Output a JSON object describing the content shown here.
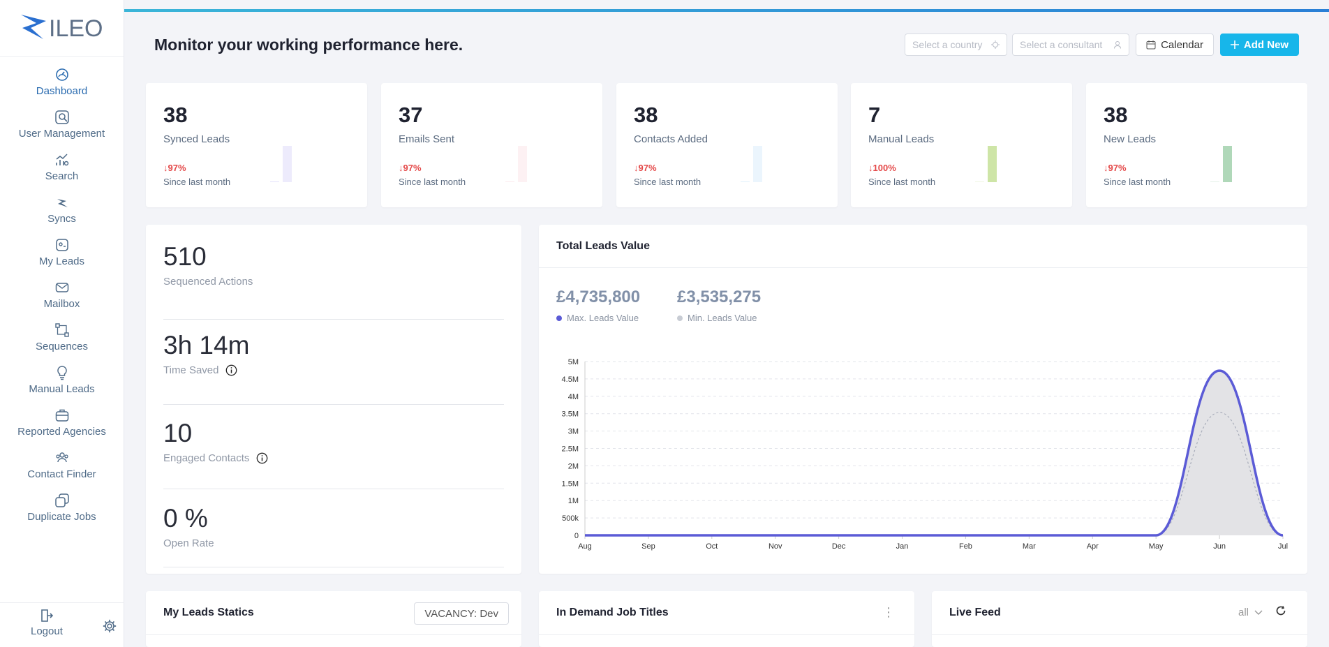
{
  "brand": {
    "logo_text": "ILEO"
  },
  "sidebar": {
    "items": [
      {
        "label": "Dashboard",
        "icon": "dashboard-gauge-icon",
        "active": true
      },
      {
        "label": "User Management",
        "icon": "user-search-icon"
      },
      {
        "label": "Search",
        "icon": "chart-search-icon"
      },
      {
        "label": "Syncs",
        "icon": "sync-bolt-icon"
      },
      {
        "label": "My Leads",
        "icon": "leads-card-icon"
      },
      {
        "label": "Mailbox",
        "icon": "mail-icon"
      },
      {
        "label": "Sequences",
        "icon": "sequence-icon"
      },
      {
        "label": "Manual Leads",
        "icon": "bulb-icon"
      },
      {
        "label": "Reported Agencies",
        "icon": "briefcase-icon"
      },
      {
        "label": "Contact Finder",
        "icon": "contacts-icon"
      },
      {
        "label": "Duplicate Jobs",
        "icon": "duplicate-icon"
      }
    ],
    "logout_label": "Logout"
  },
  "header": {
    "title": "Monitor your working performance here.",
    "country_placeholder": "Select a country",
    "consultant_placeholder": "Select a consultant",
    "calendar_label": "Calendar",
    "add_label": "Add New"
  },
  "stats": [
    {
      "value": "38",
      "label": "Synced Leads",
      "delta": "97%",
      "since": "Since last month",
      "color": "#6c5ce7",
      "bars": [
        0.02,
        1.0
      ]
    },
    {
      "value": "37",
      "label": "Emails Sent",
      "delta": "97%",
      "since": "Since last month",
      "color": "#f08a9a",
      "bars": [
        0.02,
        1.0
      ]
    },
    {
      "value": "38",
      "label": "Contacts Added",
      "delta": "97%",
      "since": "Since last month",
      "color": "#5ab0f0",
      "bars": [
        0.02,
        1.0
      ]
    },
    {
      "value": "7",
      "label": "Manual Leads",
      "delta": "100%",
      "since": "Since last month",
      "color": "#a6cf5e",
      "bars": [
        0,
        1.0
      ]
    },
    {
      "value": "38",
      "label": "New Leads",
      "delta": "97%",
      "since": "Since last month",
      "color": "#6fb880",
      "bars": [
        0.02,
        1.0
      ]
    }
  ],
  "metrics": [
    {
      "value": "510",
      "label": "Sequenced Actions",
      "info": false
    },
    {
      "value": "3h 14m",
      "label": "Time Saved",
      "info": true
    },
    {
      "value": "10",
      "label": "Engaged Contacts",
      "info": true
    },
    {
      "value": "0 %",
      "label": "Open Rate",
      "info": false
    }
  ],
  "total_leads": {
    "title": "Total Leads Value",
    "max_value": "£4,735,800",
    "max_label": "Max. Leads Value",
    "min_value": "£3,535,275",
    "min_label": "Min. Leads Value"
  },
  "chart_data": {
    "type": "area",
    "categories": [
      "Aug",
      "Sep",
      "Oct",
      "Nov",
      "Dec",
      "Jan",
      "Feb",
      "Mar",
      "Apr",
      "May",
      "Jun",
      "Jul"
    ],
    "series": [
      {
        "name": "Max. Leads Value",
        "color": "#5b5bd6",
        "values": [
          0,
          0,
          0,
          0,
          0,
          0,
          0,
          0,
          0,
          0,
          4735800,
          0
        ]
      },
      {
        "name": "Min. Leads Value",
        "color": "#c8ccd4",
        "values": [
          0,
          0,
          0,
          0,
          0,
          0,
          0,
          0,
          0,
          0,
          3535275,
          0
        ]
      }
    ],
    "yticks": [
      "0",
      "500k",
      "1M",
      "1.5M",
      "2M",
      "2.5M",
      "3M",
      "3.5M",
      "4M",
      "4.5M",
      "5M"
    ],
    "ylim": [
      0,
      5000000
    ],
    "grid": true
  },
  "bottom": {
    "leads_statics_title": "My Leads Statics",
    "vacancy_label": "VACANCY: Dev",
    "job_titles_title": "In Demand Job Titles",
    "live_feed_title": "Live Feed",
    "live_filter": "all"
  }
}
